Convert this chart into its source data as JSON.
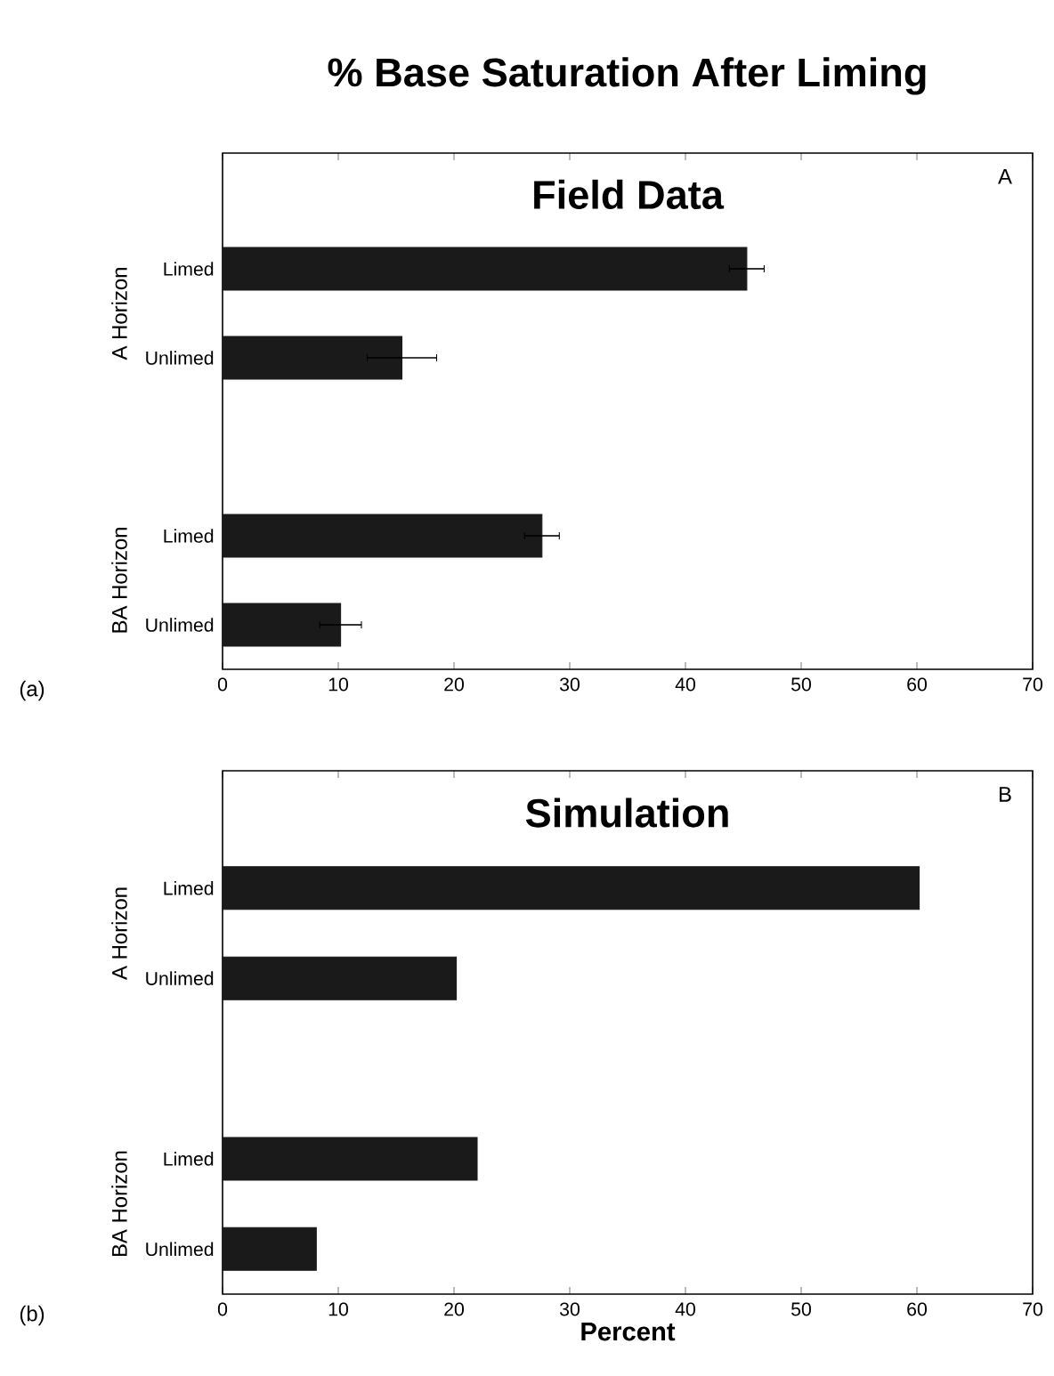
{
  "chart_data": [
    {
      "type": "bar",
      "orientation": "horizontal",
      "title": "% Base Saturation After Liming",
      "subtitle": "Field Data",
      "categories": [
        "Limed",
        "Unlimed",
        null,
        "Limed",
        "Unlimed"
      ],
      "values": [
        45.3,
        15.5,
        null,
        27.6,
        10.2
      ],
      "errors": [
        1.5,
        3,
        null,
        1.5,
        1.8
      ],
      "color": "#1a1a1a",
      "xlim": [
        0,
        70
      ],
      "xticks": [
        0,
        10,
        20,
        30,
        40,
        50,
        60,
        70
      ],
      "annotations": [
        "A Horizon",
        "BA Horizon",
        "A",
        "(a)"
      ]
    },
    {
      "type": "bar",
      "orientation": "horizontal",
      "subtitle": "Simulation",
      "xlabel": "Percent",
      "categories": [
        "Limed",
        "Unlimed",
        null,
        "Limed",
        "Unlimed"
      ],
      "values": [
        60.2,
        20.2,
        null,
        22.0,
        8.1
      ],
      "color": "#1a1a1a",
      "xlim": [
        0,
        70
      ],
      "xticks": [
        0,
        10,
        20,
        30,
        40,
        50,
        60,
        70
      ],
      "annotations": [
        "A Horizon",
        "BA Horizon",
        "B",
        "(b)"
      ]
    }
  ]
}
